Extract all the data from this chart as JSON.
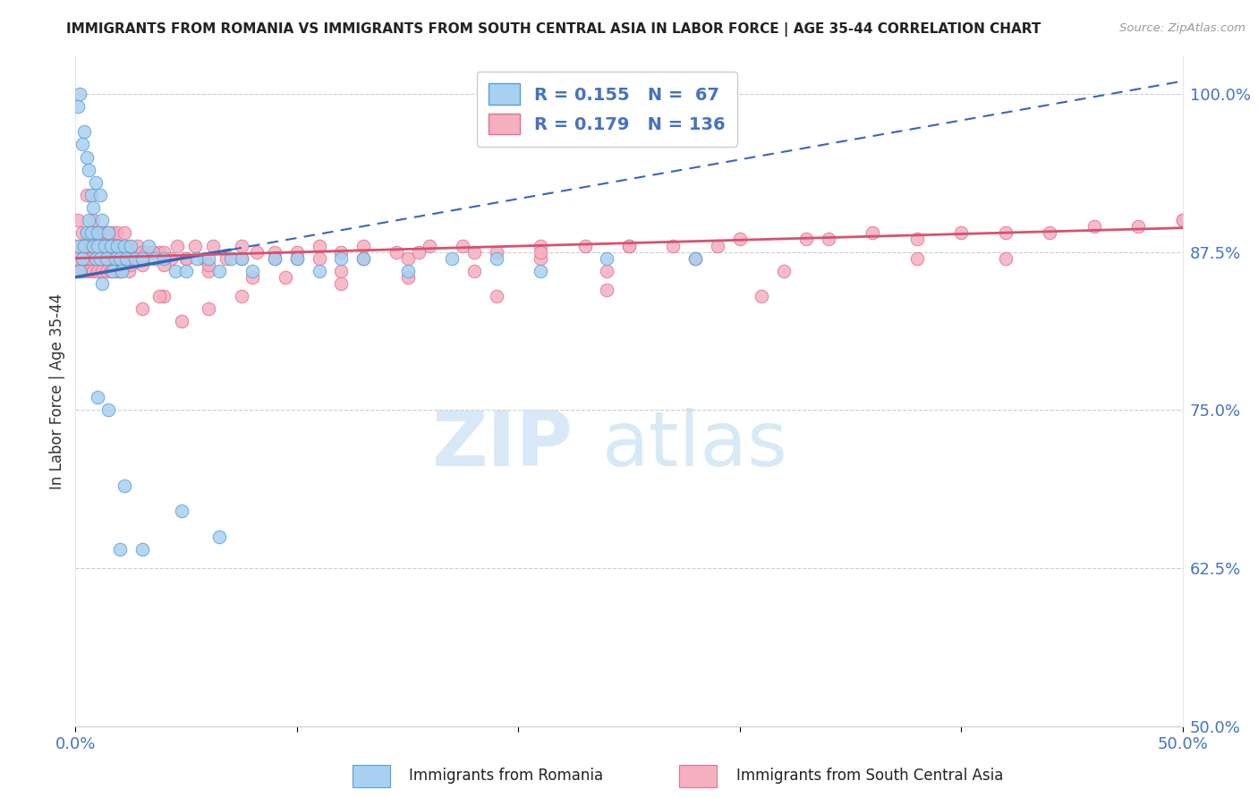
{
  "title": "IMMIGRANTS FROM ROMANIA VS IMMIGRANTS FROM SOUTH CENTRAL ASIA IN LABOR FORCE | AGE 35-44 CORRELATION CHART",
  "source": "Source: ZipAtlas.com",
  "ylabel": "In Labor Force | Age 35-44",
  "ylabel_ticks": [
    0.5,
    0.625,
    0.75,
    0.875,
    1.0
  ],
  "ylabel_labels": [
    "50.0%",
    "62.5%",
    "75.0%",
    "87.5%",
    "100.0%"
  ],
  "xmin": 0.0,
  "xmax": 0.5,
  "ymin": 0.5,
  "ymax": 1.03,
  "romania_color": "#a8d0f0",
  "romania_edge": "#5a9fd4",
  "sca_color": "#f5b0c0",
  "sca_edge": "#e07090",
  "romania_R": 0.155,
  "romania_N": 67,
  "sca_R": 0.179,
  "sca_N": 136,
  "reg_blue": "#3a65b8",
  "reg_pink": "#d85070",
  "watermark_zip_color": "#c8dff5",
  "watermark_atlas_color": "#b8d8f0",
  "romania_x": [
    0.001,
    0.001,
    0.002,
    0.002,
    0.003,
    0.003,
    0.004,
    0.004,
    0.005,
    0.005,
    0.006,
    0.006,
    0.007,
    0.007,
    0.008,
    0.008,
    0.009,
    0.009,
    0.01,
    0.01,
    0.011,
    0.011,
    0.012,
    0.012,
    0.013,
    0.014,
    0.015,
    0.016,
    0.017,
    0.018,
    0.019,
    0.02,
    0.021,
    0.022,
    0.023,
    0.025,
    0.027,
    0.03,
    0.033,
    0.036,
    0.04,
    0.045,
    0.05,
    0.055,
    0.06,
    0.065,
    0.07,
    0.075,
    0.08,
    0.09,
    0.1,
    0.11,
    0.12,
    0.13,
    0.15,
    0.17,
    0.19,
    0.21,
    0.24,
    0.28,
    0.022,
    0.03,
    0.048,
    0.065,
    0.01,
    0.015,
    0.02
  ],
  "romania_y": [
    0.88,
    0.99,
    0.86,
    1.0,
    0.87,
    0.96,
    0.88,
    0.97,
    0.89,
    0.95,
    0.9,
    0.94,
    0.89,
    0.92,
    0.88,
    0.91,
    0.87,
    0.93,
    0.88,
    0.89,
    0.92,
    0.87,
    0.9,
    0.85,
    0.88,
    0.87,
    0.89,
    0.88,
    0.86,
    0.87,
    0.88,
    0.87,
    0.86,
    0.88,
    0.87,
    0.88,
    0.87,
    0.87,
    0.88,
    0.87,
    0.87,
    0.86,
    0.86,
    0.87,
    0.87,
    0.86,
    0.87,
    0.87,
    0.86,
    0.87,
    0.87,
    0.86,
    0.87,
    0.87,
    0.86,
    0.87,
    0.87,
    0.86,
    0.87,
    0.87,
    0.69,
    0.64,
    0.67,
    0.65,
    0.76,
    0.75,
    0.64
  ],
  "sca_x": [
    0.0,
    0.0,
    0.001,
    0.001,
    0.002,
    0.002,
    0.003,
    0.003,
    0.004,
    0.004,
    0.005,
    0.005,
    0.006,
    0.006,
    0.007,
    0.007,
    0.008,
    0.008,
    0.009,
    0.009,
    0.01,
    0.01,
    0.011,
    0.011,
    0.012,
    0.012,
    0.013,
    0.013,
    0.014,
    0.014,
    0.015,
    0.015,
    0.016,
    0.016,
    0.017,
    0.017,
    0.018,
    0.018,
    0.019,
    0.019,
    0.02,
    0.02,
    0.022,
    0.022,
    0.024,
    0.024,
    0.026,
    0.028,
    0.03,
    0.03,
    0.032,
    0.035,
    0.038,
    0.04,
    0.043,
    0.046,
    0.05,
    0.054,
    0.058,
    0.062,
    0.068,
    0.075,
    0.082,
    0.09,
    0.1,
    0.11,
    0.12,
    0.13,
    0.145,
    0.16,
    0.175,
    0.19,
    0.21,
    0.23,
    0.25,
    0.27,
    0.3,
    0.33,
    0.36,
    0.4,
    0.44,
    0.48,
    0.5,
    0.04,
    0.06,
    0.08,
    0.1,
    0.12,
    0.15,
    0.18,
    0.21,
    0.24,
    0.28,
    0.32,
    0.38,
    0.42,
    0.008,
    0.012,
    0.016,
    0.02,
    0.025,
    0.03,
    0.035,
    0.04,
    0.05,
    0.06,
    0.075,
    0.09,
    0.11,
    0.13,
    0.155,
    0.18,
    0.21,
    0.25,
    0.29,
    0.34,
    0.38,
    0.42,
    0.46,
    0.5,
    0.005,
    0.01,
    0.015,
    0.02,
    0.025,
    0.03,
    0.038,
    0.048,
    0.06,
    0.075,
    0.095,
    0.12,
    0.15,
    0.19,
    0.24,
    0.31
  ],
  "sca_y": [
    0.88,
    0.86,
    0.9,
    0.87,
    0.88,
    0.86,
    0.87,
    0.89,
    0.88,
    0.86,
    0.87,
    0.89,
    0.88,
    0.86,
    0.87,
    0.89,
    0.88,
    0.86,
    0.87,
    0.89,
    0.88,
    0.86,
    0.87,
    0.89,
    0.88,
    0.86,
    0.87,
    0.89,
    0.88,
    0.86,
    0.87,
    0.89,
    0.88,
    0.86,
    0.87,
    0.89,
    0.88,
    0.86,
    0.87,
    0.89,
    0.88,
    0.86,
    0.87,
    0.89,
    0.88,
    0.86,
    0.87,
    0.88,
    0.875,
    0.865,
    0.875,
    0.875,
    0.875,
    0.875,
    0.87,
    0.88,
    0.87,
    0.88,
    0.87,
    0.88,
    0.87,
    0.88,
    0.875,
    0.875,
    0.875,
    0.88,
    0.875,
    0.88,
    0.875,
    0.88,
    0.88,
    0.875,
    0.88,
    0.88,
    0.88,
    0.88,
    0.885,
    0.885,
    0.89,
    0.89,
    0.89,
    0.895,
    0.9,
    0.84,
    0.86,
    0.855,
    0.87,
    0.86,
    0.87,
    0.86,
    0.87,
    0.86,
    0.87,
    0.86,
    0.87,
    0.87,
    0.9,
    0.87,
    0.86,
    0.88,
    0.865,
    0.87,
    0.875,
    0.865,
    0.87,
    0.865,
    0.87,
    0.87,
    0.87,
    0.87,
    0.875,
    0.875,
    0.875,
    0.88,
    0.88,
    0.885,
    0.885,
    0.89,
    0.895,
    0.9,
    0.92,
    0.88,
    0.89,
    0.86,
    0.87,
    0.83,
    0.84,
    0.82,
    0.83,
    0.84,
    0.855,
    0.85,
    0.855,
    0.84,
    0.845,
    0.84
  ]
}
